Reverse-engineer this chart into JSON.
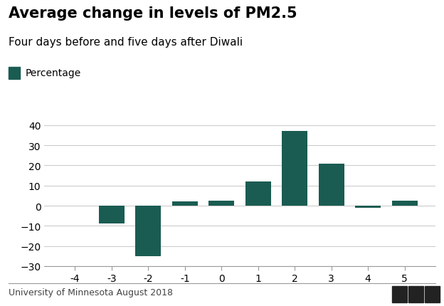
{
  "title": "Average change in levels of PM2.5",
  "subtitle": "Four days before and five days after Diwali",
  "legend_label": "Percentage",
  "footer": "University of Minnesota August 2018",
  "categories": [
    -4,
    -3,
    -2,
    -1,
    0,
    1,
    2,
    3,
    4,
    5
  ],
  "values": [
    0,
    -9,
    -25,
    2,
    2.5,
    12,
    37,
    21,
    -1,
    2.5
  ],
  "bar_color": "#1a5c52",
  "background_color": "#ffffff",
  "ylim": [
    -30,
    40
  ],
  "yticks": [
    -30,
    -20,
    -10,
    0,
    10,
    20,
    30,
    40
  ],
  "title_fontsize": 15,
  "subtitle_fontsize": 11,
  "legend_fontsize": 10,
  "tick_fontsize": 10,
  "footer_fontsize": 9
}
